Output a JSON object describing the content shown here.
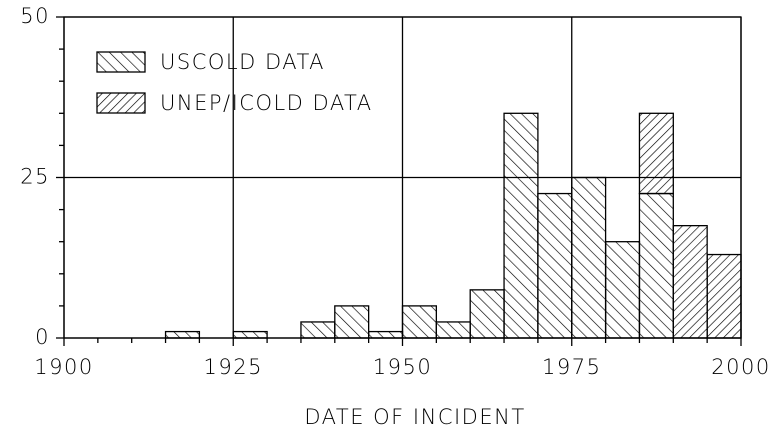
{
  "chart_data": {
    "type": "histogram",
    "xlabel": "DATE OF INCIDENT",
    "bins": [
      1900,
      1905,
      1910,
      1915,
      1920,
      1925,
      1930,
      1935,
      1940,
      1945,
      1950,
      1955,
      1960,
      1965,
      1970,
      1975,
      1980,
      1985,
      1990,
      1995,
      2000
    ],
    "series": [
      {
        "name": "USCOLD DATA",
        "color": "#000000",
        "hatch": "backslash",
        "values": [
          0,
          0,
          0,
          1,
          0,
          1,
          0,
          2.5,
          5,
          1,
          5,
          2.5,
          7.5,
          35,
          22.5,
          25,
          15,
          22.5,
          0,
          0
        ]
      },
      {
        "name": "UNEP/ICOLD DATA",
        "color": "#000000",
        "hatch": "slash",
        "values": [
          0,
          0,
          0,
          0,
          0,
          0,
          0,
          0,
          0,
          0,
          0,
          0,
          0,
          0,
          0,
          0,
          0,
          12.5,
          17.5,
          13
        ]
      }
    ],
    "stacked": true,
    "xlim": [
      1900,
      2000
    ],
    "xticks": [
      1900,
      1925,
      1950,
      1975,
      2000
    ],
    "xminorticks": [
      1905,
      1910,
      1915,
      1920,
      1930,
      1935,
      1940,
      1945,
      1955,
      1960,
      1965,
      1970,
      1980,
      1985,
      1990,
      1995
    ],
    "ylim": [
      0,
      50
    ],
    "yticks": [
      0,
      25,
      50
    ],
    "yminorticks": [
      5,
      10,
      15,
      20,
      30,
      35,
      40,
      45
    ],
    "grid": true,
    "legend": "upper left"
  }
}
